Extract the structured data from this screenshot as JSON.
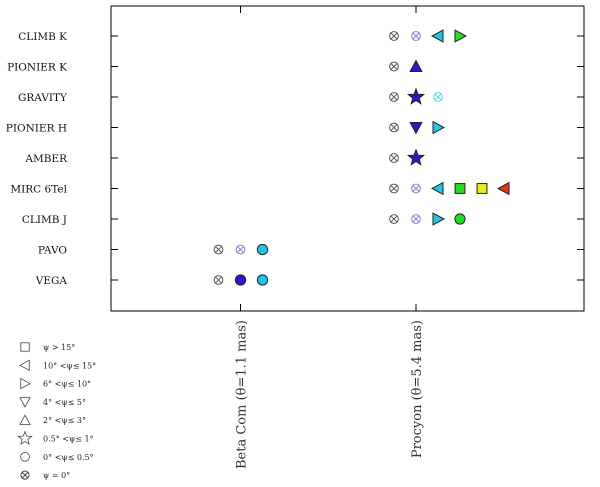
{
  "chart_data": {
    "type": "scatter",
    "title": "",
    "instruments": [
      "CLIMB K",
      "PIONIER K",
      "GRAVITY",
      "PIONIER H",
      "AMBER",
      "MIRC 6Tel",
      "CLIMB J",
      "PAVO",
      "VEGA"
    ],
    "targets": [
      {
        "key": "beta",
        "label": "Beta Com (θ=1.1 mas)"
      },
      {
        "key": "procyon",
        "label": "Procyon (θ=5.4 mas)"
      }
    ],
    "marker_styles": {
      "square": "ψ > 15°",
      "triangle-left": "10° <ψ≤ 15°",
      "triangle-right": "6° <ψ≤ 10°",
      "triangle-down": "4° <ψ≤ 5°",
      "triangle-up": "2° <ψ≤ 3°",
      "star": "0.5° <ψ≤ 1°",
      "circle": "0° <ψ≤ 0.5°",
      "circle-cross": "ψ = 0°"
    },
    "legend": [
      {
        "marker": "square",
        "label": "ψ > 15°"
      },
      {
        "marker": "triangle-left",
        "label": "10° <ψ≤ 15°"
      },
      {
        "marker": "triangle-right",
        "label": "6° <ψ≤ 10°"
      },
      {
        "marker": "triangle-down",
        "label": "4° <ψ≤ 5°"
      },
      {
        "marker": "triangle-up",
        "label": "2° <ψ≤ 3°"
      },
      {
        "marker": "star",
        "label": "0.5° <ψ≤ 1°"
      },
      {
        "marker": "circle",
        "label": "0° <ψ≤ 0.5°"
      },
      {
        "marker": "circle-cross",
        "label": "ψ = 0°"
      }
    ],
    "points": [
      {
        "instrument": "CLIMB K",
        "target": "procyon",
        "order": 0,
        "marker": "circle-cross",
        "color": "#555555"
      },
      {
        "instrument": "CLIMB K",
        "target": "procyon",
        "order": 1,
        "marker": "circle-cross",
        "color": "#8080d8"
      },
      {
        "instrument": "CLIMB K",
        "target": "procyon",
        "order": 2,
        "marker": "triangle-left",
        "color": "#22c4e8"
      },
      {
        "instrument": "CLIMB K",
        "target": "procyon",
        "order": 3,
        "marker": "triangle-right",
        "color": "#2edc2e"
      },
      {
        "instrument": "PIONIER K",
        "target": "procyon",
        "order": 0,
        "marker": "circle-cross",
        "color": "#555555"
      },
      {
        "instrument": "PIONIER K",
        "target": "procyon",
        "order": 1,
        "marker": "triangle-up",
        "color": "#3a0fc8"
      },
      {
        "instrument": "GRAVITY",
        "target": "procyon",
        "order": 0,
        "marker": "circle-cross",
        "color": "#555555"
      },
      {
        "instrument": "GRAVITY",
        "target": "procyon",
        "order": 1,
        "marker": "star",
        "color": "#3a0fc8"
      },
      {
        "instrument": "GRAVITY",
        "target": "procyon",
        "order": 2,
        "marker": "circle-cross",
        "color": "#55d8ee"
      },
      {
        "instrument": "PIONIER H",
        "target": "procyon",
        "order": 0,
        "marker": "circle-cross",
        "color": "#555555"
      },
      {
        "instrument": "PIONIER H",
        "target": "procyon",
        "order": 1,
        "marker": "triangle-down",
        "color": "#3a0fc8"
      },
      {
        "instrument": "PIONIER H",
        "target": "procyon",
        "order": 2,
        "marker": "triangle-right",
        "color": "#22c4e8"
      },
      {
        "instrument": "AMBER",
        "target": "procyon",
        "order": 0,
        "marker": "circle-cross",
        "color": "#555555"
      },
      {
        "instrument": "AMBER",
        "target": "procyon",
        "order": 1,
        "marker": "star",
        "color": "#3a0fc8"
      },
      {
        "instrument": "MIRC 6Tel",
        "target": "procyon",
        "order": 0,
        "marker": "circle-cross",
        "color": "#555555"
      },
      {
        "instrument": "MIRC 6Tel",
        "target": "procyon",
        "order": 1,
        "marker": "circle-cross",
        "color": "#8080d8"
      },
      {
        "instrument": "MIRC 6Tel",
        "target": "procyon",
        "order": 2,
        "marker": "triangle-left",
        "color": "#22c4e8"
      },
      {
        "instrument": "MIRC 6Tel",
        "target": "procyon",
        "order": 3,
        "marker": "square",
        "color": "#22dd22"
      },
      {
        "instrument": "MIRC 6Tel",
        "target": "procyon",
        "order": 4,
        "marker": "square",
        "color": "#e8f020"
      },
      {
        "instrument": "MIRC 6Tel",
        "target": "procyon",
        "order": 5,
        "marker": "triangle-left",
        "color": "#ee3311"
      },
      {
        "instrument": "CLIMB J",
        "target": "procyon",
        "order": 0,
        "marker": "circle-cross",
        "color": "#555555"
      },
      {
        "instrument": "CLIMB J",
        "target": "procyon",
        "order": 1,
        "marker": "circle-cross",
        "color": "#8080d8"
      },
      {
        "instrument": "CLIMB J",
        "target": "procyon",
        "order": 2,
        "marker": "triangle-right",
        "color": "#22c4e8"
      },
      {
        "instrument": "CLIMB J",
        "target": "procyon",
        "order": 3,
        "marker": "circle",
        "color": "#22dd22"
      },
      {
        "instrument": "PAVO",
        "target": "beta",
        "order": 0,
        "marker": "circle-cross",
        "color": "#555555"
      },
      {
        "instrument": "PAVO",
        "target": "beta",
        "order": 1,
        "marker": "circle-cross",
        "color": "#8080d8"
      },
      {
        "instrument": "PAVO",
        "target": "beta",
        "order": 2,
        "marker": "circle",
        "color": "#22c4e8"
      },
      {
        "instrument": "VEGA",
        "target": "beta",
        "order": 0,
        "marker": "circle-cross",
        "color": "#555555"
      },
      {
        "instrument": "VEGA",
        "target": "beta",
        "order": 1,
        "marker": "circle",
        "color": "#3a0fc8"
      },
      {
        "instrument": "VEGA",
        "target": "beta",
        "order": 2,
        "marker": "circle",
        "color": "#22c4e8"
      }
    ]
  }
}
